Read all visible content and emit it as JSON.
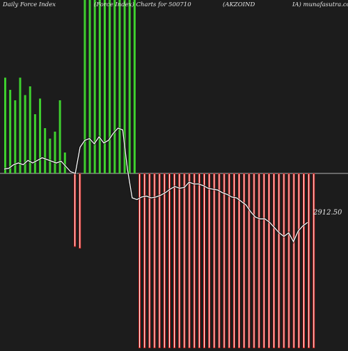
{
  "header": {
    "title_left": "Daily Force  Index",
    "title_mid": "(Force Index) Charts for 500710",
    "title_code": "(AKZOIND",
    "title_right": "IA) munafasutra.com"
  },
  "last_value_label": "2912.50",
  "colors": {
    "background": "#1c1c1c",
    "positive": "#3ecf2e",
    "negative_fill": "#ffffff",
    "negative_stroke": "#e0201c",
    "zero_line": "#b4b4b4",
    "price_line": "#ffffff"
  },
  "chart_data": {
    "type": "bar",
    "title": "Daily Force  Index",
    "zero_baseline": 0,
    "ylim": [
      -1,
      1
    ],
    "bars": [
      0.55,
      0.48,
      0.42,
      0.55,
      0.45,
      0.5,
      0.34,
      0.43,
      0.26,
      0.2,
      0.24,
      0.42,
      0.12,
      0.0,
      -0.42,
      -0.43,
      1.0,
      1.0,
      1.0,
      1.0,
      1.0,
      1.0,
      1.0,
      1.0,
      1.0,
      1.0,
      1.0,
      -1.0,
      -1.0,
      -1.0,
      -1.0,
      -1.0,
      -1.0,
      -1.0,
      -1.0,
      -1.0,
      -1.0,
      -1.0,
      -1.0,
      -1.0,
      -1.0,
      -1.0,
      -1.0,
      -1.0,
      -1.0,
      -1.0,
      -1.0,
      -1.0,
      -1.0,
      -1.0,
      -1.0,
      -1.0,
      -1.0,
      -1.0,
      -1.0,
      -1.0,
      -1.0,
      -1.0,
      -1.0,
      -1.0,
      -1.0,
      -1.0,
      -1.0
    ],
    "price_line": [
      0.05,
      0.06,
      0.1,
      0.12,
      0.1,
      0.15,
      0.12,
      0.15,
      0.18,
      0.16,
      0.14,
      0.12,
      0.14,
      0.08,
      0.02,
      0.0,
      0.3,
      0.38,
      0.4,
      0.34,
      0.42,
      0.35,
      0.38,
      0.46,
      0.52,
      0.5,
      0.05,
      -0.28,
      -0.3,
      -0.27,
      -0.26,
      -0.28,
      -0.27,
      -0.25,
      -0.22,
      -0.18,
      -0.15,
      -0.17,
      -0.16,
      -0.1,
      -0.12,
      -0.12,
      -0.14,
      -0.17,
      -0.18,
      -0.19,
      -0.22,
      -0.24,
      -0.27,
      -0.28,
      -0.32,
      -0.36,
      -0.44,
      -0.5,
      -0.52,
      -0.52,
      -0.56,
      -0.62,
      -0.68,
      -0.72,
      -0.68,
      -0.78,
      -0.66,
      -0.6,
      -0.56
    ],
    "last_value": 2912.5
  }
}
